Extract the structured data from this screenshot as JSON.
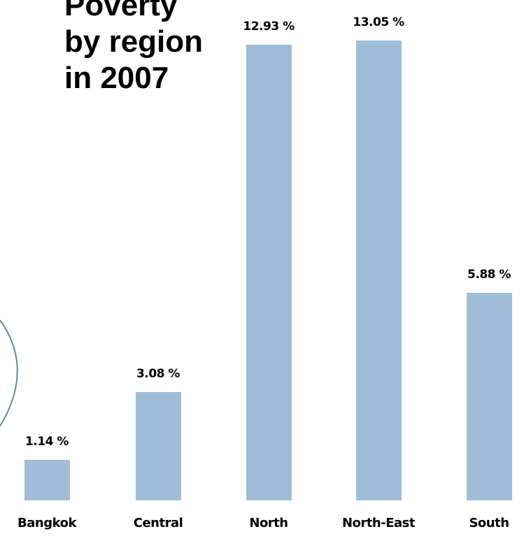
{
  "chart_data": {
    "type": "bar",
    "title_lines": [
      "Poverty",
      "by region",
      "in 2007"
    ],
    "categories": [
      "Bangkok",
      "Central",
      "North",
      "North-East",
      "South"
    ],
    "values": [
      1.14,
      3.08,
      12.93,
      13.05,
      5.88
    ],
    "value_labels": [
      "1.14 %",
      "3.08 %",
      "12.93 %",
      "13.05 %",
      "5.88 %"
    ],
    "ylim": [
      0,
      13.6
    ],
    "grid": false,
    "bar_color": "#a0bdd8",
    "decor_arc_color": "#6a8796"
  }
}
